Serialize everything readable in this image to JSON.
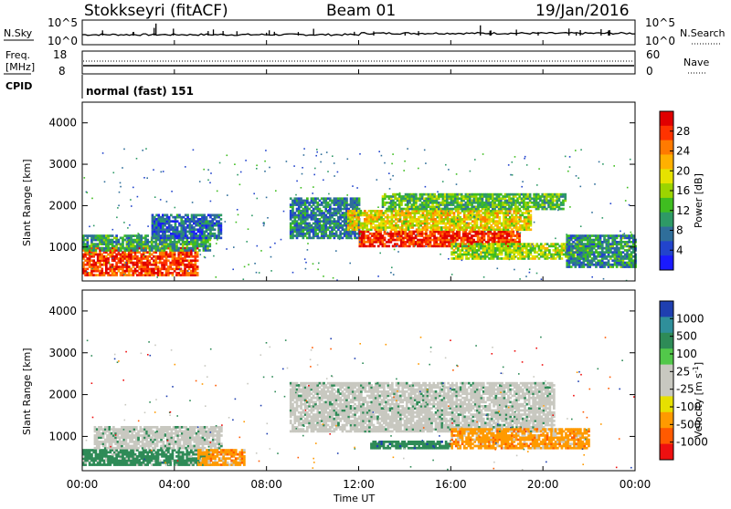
{
  "header": {
    "station": "Stokkseyri (fitACF)",
    "beam": "Beam 01",
    "date": "19/Jan/2016"
  },
  "top_panels": {
    "nsky_label": "N.Sky",
    "nsky_ticks": [
      "10^5",
      "10^0"
    ],
    "nsearch_label": "N.Search",
    "nsearch_ticks": [
      "10^5",
      "10^0"
    ],
    "freq_label_1": "Freq.",
    "freq_label_2": "[MHz]",
    "freq_ticks": [
      "18",
      "8"
    ],
    "nave_label": "Nave",
    "nave_ticks": [
      "60",
      "0"
    ],
    "cpid_label": "CPID",
    "cpid_text": "normal (fast) 151"
  },
  "axes": {
    "ylabel": "Slant Range [km]",
    "xlabel": "Time UT",
    "y_ticks": [
      "4000",
      "3000",
      "2000",
      "1000"
    ],
    "x_ticks": [
      "00:00",
      "04:00",
      "08:00",
      "12:00",
      "16:00",
      "20:00",
      "00:00"
    ]
  },
  "chart_data": [
    {
      "type": "heatmap",
      "title": "",
      "xlabel": "Time UT",
      "ylabel": "Slant Range [km]",
      "xlim": [
        "00:00",
        "24:00"
      ],
      "ylim": [
        180,
        4500
      ],
      "colorbar_label": "Power [dB]",
      "colorbar_ticks": [
        "28",
        "24",
        "20",
        "16",
        "12",
        "8",
        "4"
      ],
      "colorbar_colors": [
        "#e00000",
        "#ff3300",
        "#ff7a00",
        "#ffb000",
        "#e6e200",
        "#9bd400",
        "#3fbd20",
        "#2e9a66",
        "#2f6e9a",
        "#2244cc",
        "#1a1aff"
      ],
      "colorbar_range": [
        0,
        30
      ],
      "blobs": [
        {
          "t0": 0.0,
          "t1": 5.0,
          "r0": 300,
          "r1": 1000,
          "value": 26
        },
        {
          "t0": 0.0,
          "t1": 5.5,
          "r0": 900,
          "r1": 1300,
          "value": 10
        },
        {
          "t0": 3.0,
          "t1": 6.0,
          "r0": 1200,
          "r1": 1800,
          "value": 6
        },
        {
          "t0": 9.0,
          "t1": 12.0,
          "r0": 1200,
          "r1": 2200,
          "value": 8
        },
        {
          "t0": 12.0,
          "t1": 19.0,
          "r0": 1000,
          "r1": 1400,
          "value": 27
        },
        {
          "t0": 11.5,
          "t1": 19.5,
          "r0": 1400,
          "r1": 1900,
          "value": 18
        },
        {
          "t0": 13.0,
          "t1": 21.0,
          "r0": 1900,
          "r1": 2300,
          "value": 12
        },
        {
          "t0": 16.0,
          "t1": 22.0,
          "r0": 700,
          "r1": 1100,
          "value": 15
        },
        {
          "t0": 21.0,
          "t1": 24.0,
          "r0": 500,
          "r1": 1300,
          "value": 9
        }
      ]
    },
    {
      "type": "heatmap",
      "title": "",
      "xlabel": "Time UT",
      "ylabel": "Slant Range [km]",
      "xlim": [
        "00:00",
        "24:00"
      ],
      "ylim": [
        180,
        4500
      ],
      "colorbar_label": "Velocity [m s^-1]",
      "colorbar_ticks": [
        "1000",
        "500",
        "100",
        "25",
        "-25",
        "-100",
        "-500",
        "-1000"
      ],
      "colorbar_colors": [
        "#1f3fb0",
        "#2f8f9a",
        "#2e8b57",
        "#52c84a",
        "#c8c8c0",
        "#c8c8c0",
        "#e6e000",
        "#ff9a00",
        "#ff5a00",
        "#ee1010"
      ],
      "blobs": [
        {
          "t0": 0.0,
          "t1": 5.5,
          "r0": 300,
          "r1": 700,
          "value": "100"
        },
        {
          "t0": 0.5,
          "t1": 6.0,
          "r0": 700,
          "r1": 1250,
          "value": "25"
        },
        {
          "t0": 5.0,
          "t1": 7.0,
          "r0": 300,
          "r1": 700,
          "value": "-100"
        },
        {
          "t0": 9.0,
          "t1": 20.5,
          "r0": 1100,
          "r1": 2300,
          "value": "25"
        },
        {
          "t0": 12.5,
          "t1": 16.0,
          "r0": 700,
          "r1": 900,
          "value": "500"
        },
        {
          "t0": 16.0,
          "t1": 22.0,
          "r0": 700,
          "r1": 1200,
          "value": "-100"
        }
      ]
    }
  ]
}
